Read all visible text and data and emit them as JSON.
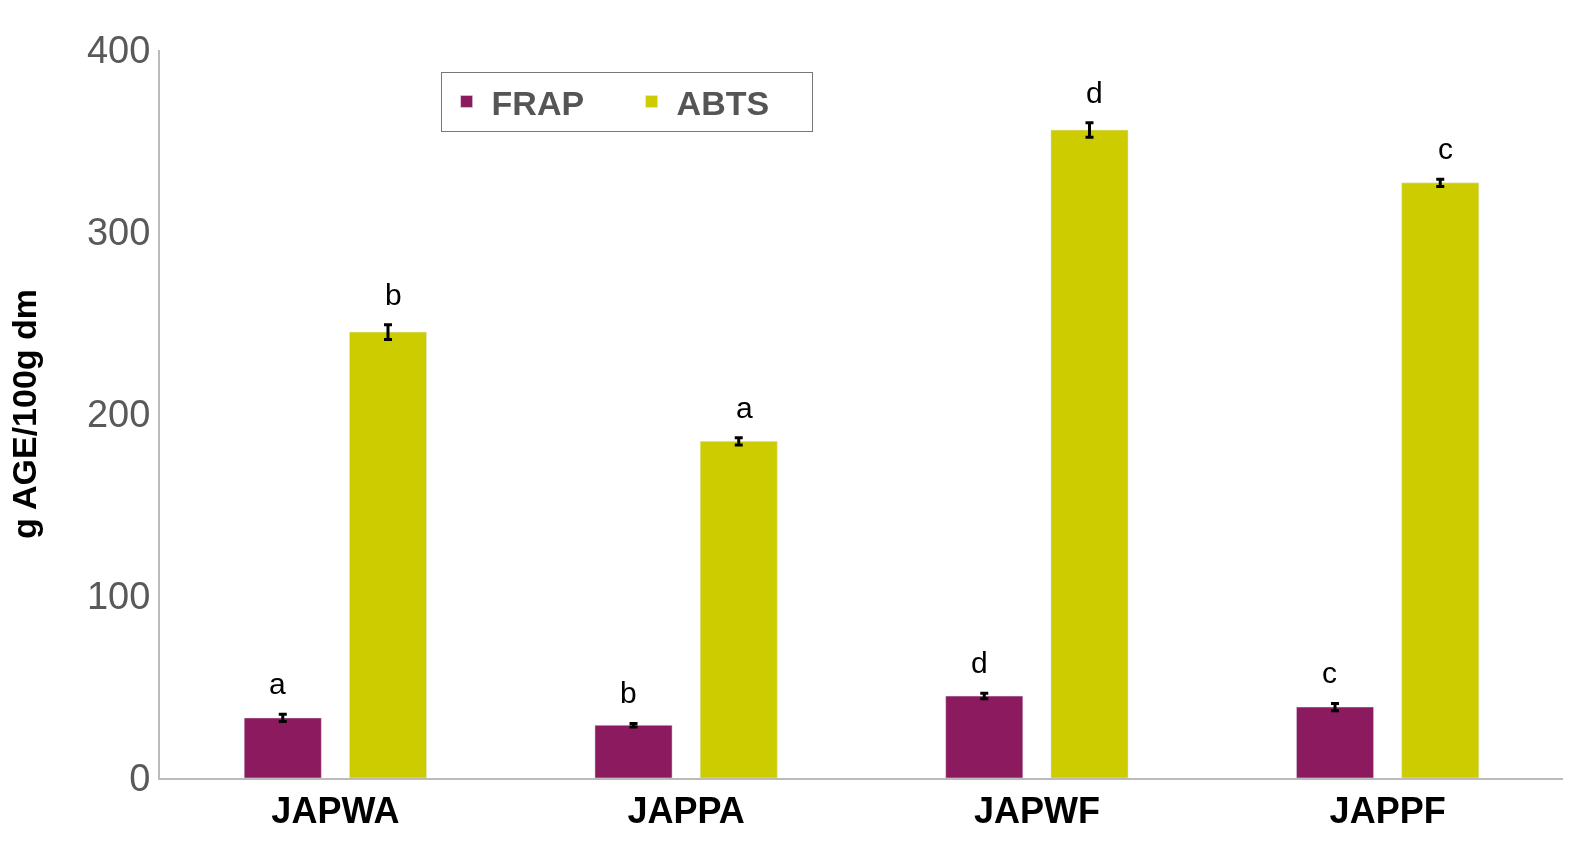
{
  "chart_data": {
    "type": "bar",
    "ylabel": "g AGE/100g dm",
    "categories": [
      "JAPWA",
      "JAPPA",
      "JAPWF",
      "JAPPF"
    ],
    "series": [
      {
        "name": "FRAP",
        "color": "#8b1a5e",
        "values": [
          33,
          29,
          45,
          39
        ],
        "errors": [
          2,
          1,
          1.5,
          2
        ],
        "value_labels": [
          "a",
          "b",
          "d",
          "c"
        ]
      },
      {
        "name": "ABTS",
        "color": "#cccc00",
        "values": [
          245,
          185,
          356,
          327
        ],
        "errors": [
          4,
          2,
          4,
          2
        ],
        "value_labels": [
          "b",
          "a",
          "d",
          "c"
        ]
      }
    ],
    "ylim": [
      0,
      400
    ],
    "yticks": [
      0,
      100,
      200,
      300,
      400
    ],
    "legend": "top left"
  }
}
